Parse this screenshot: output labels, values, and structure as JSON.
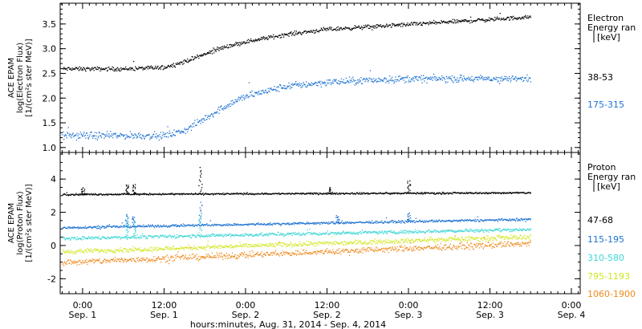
{
  "chart_data": [
    {
      "type": "scatter",
      "ylabel_lines": [
        "ACE EPAM",
        "log(Electron Flux)",
        "[1/(cm²s ster MeV)]"
      ],
      "yticks": [
        1.0,
        1.5,
        2.0,
        2.5,
        3.0,
        3.5
      ],
      "ylim": [
        0.9,
        3.92
      ],
      "legend_title": [
        "Electron",
        "Energy ran",
        "[keV]"
      ],
      "series": [
        {
          "name": "38-53",
          "color": "#000000",
          "x": [
            -3,
            0,
            6,
            12,
            15,
            18,
            21,
            24,
            30,
            36,
            42,
            48,
            54,
            60,
            66
          ],
          "y": [
            2.6,
            2.6,
            2.6,
            2.63,
            2.75,
            2.9,
            3.05,
            3.15,
            3.3,
            3.4,
            3.45,
            3.5,
            3.55,
            3.6,
            3.65
          ]
        },
        {
          "name": "175-315",
          "color": "#1e73d2",
          "x": [
            -3,
            0,
            6,
            12,
            15,
            18,
            21,
            24,
            30,
            36,
            42,
            48,
            54,
            60,
            66
          ],
          "y": [
            1.25,
            1.25,
            1.25,
            1.25,
            1.35,
            1.6,
            1.85,
            2.05,
            2.25,
            2.33,
            2.37,
            2.4,
            2.4,
            2.4,
            2.4
          ]
        }
      ]
    },
    {
      "type": "scatter",
      "ylabel_lines": [
        "ACE EPAM",
        "log(Proton Flux)",
        "[1/(cm²s ster MeV)]"
      ],
      "yticks": [
        -2,
        0,
        2,
        4
      ],
      "ylim": [
        -2.9,
        5.6
      ],
      "legend_title": [
        "Proton",
        "Energy ran",
        "[keV]"
      ],
      "series": [
        {
          "name": "47-68",
          "color": "#000000",
          "x": [
            -3,
            66
          ],
          "y": [
            3.1,
            3.2
          ],
          "spikes": [
            [
              0.0,
              3.5
            ],
            [
              6.5,
              3.7
            ],
            [
              7.5,
              3.7
            ],
            [
              17.3,
              4.7
            ],
            [
              36.5,
              3.5
            ],
            [
              48.0,
              3.9
            ]
          ]
        },
        {
          "name": "115-195",
          "color": "#1e73d2",
          "x": [
            -3,
            66
          ],
          "y": [
            1.1,
            1.6
          ],
          "spikes": [
            [
              6.5,
              1.9
            ],
            [
              7.5,
              1.8
            ],
            [
              17.3,
              2.6
            ],
            [
              37.5,
              1.8
            ],
            [
              48.0,
              2.0
            ]
          ]
        },
        {
          "name": "310-580",
          "color": "#3fd6d6",
          "x": [
            -3,
            66
          ],
          "y": [
            0.45,
            1.0
          ],
          "spikes": [
            [
              6.5,
              1.5
            ],
            [
              7.5,
              1.5
            ],
            [
              17.3,
              1.8
            ]
          ]
        },
        {
          "name": "795-1193",
          "color": "#d2e61e",
          "x": [
            -3,
            66
          ],
          "y": [
            -0.35,
            0.55
          ]
        },
        {
          "name": "1060-1900",
          "color": "#ee8a1e",
          "x": [
            -3,
            66
          ],
          "y": [
            -1.0,
            0.15
          ]
        }
      ]
    }
  ],
  "x_axis": {
    "ticks": [
      {
        "time": "0:00",
        "date": "Sep. 1",
        "hour": 0
      },
      {
        "time": "12:00",
        "date": "Sep. 1",
        "hour": 12
      },
      {
        "time": "0:00",
        "date": "Sep. 2",
        "hour": 24
      },
      {
        "time": "12:00",
        "date": "Sep. 2",
        "hour": 36
      },
      {
        "time": "0:00",
        "date": "Sep. 3",
        "hour": 48
      },
      {
        "time": "12:00",
        "date": "Sep. 3",
        "hour": 60
      },
      {
        "time": "0:00",
        "date": "Sep. 4",
        "hour": 72
      }
    ],
    "range_hours": [
      -3.3,
      73.3
    ],
    "label": "hours:minutes, Aug. 31, 2014 - Sep.  4, 2014"
  }
}
